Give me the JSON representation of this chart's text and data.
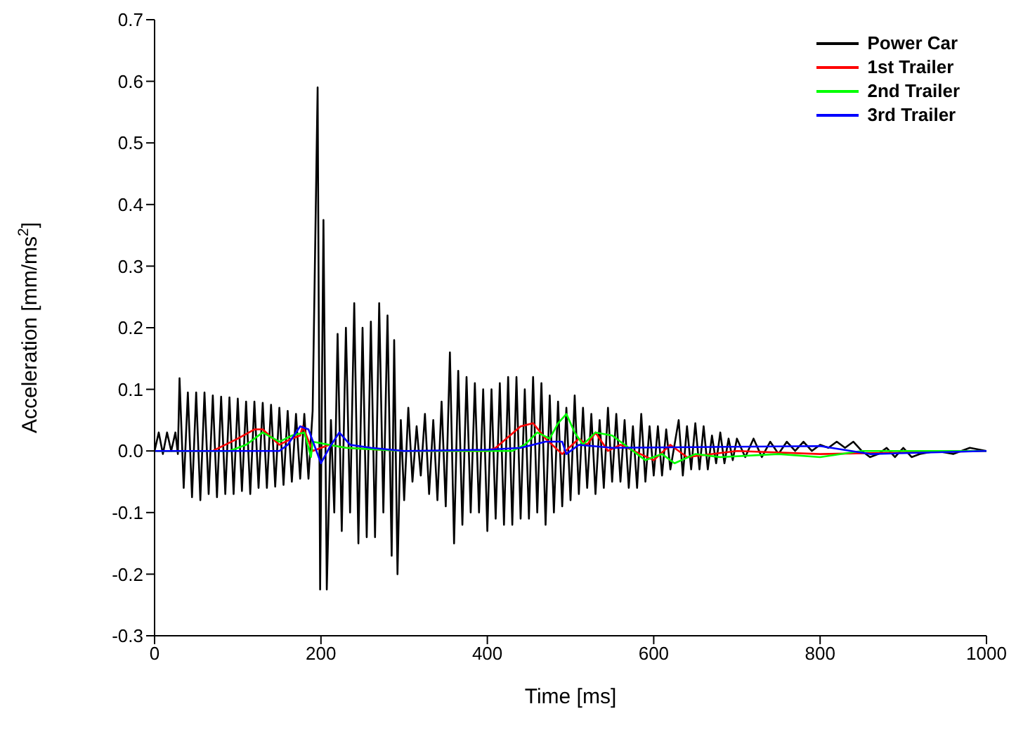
{
  "chart_data": {
    "type": "line",
    "xlabel": "Time [ms]",
    "ylabel": "Acceleration [mm/ms$^{2}$]",
    "xlim": [
      0,
      1000
    ],
    "xticks": [
      0,
      200,
      400,
      600,
      800,
      1000
    ],
    "ylim": [
      -0.3,
      0.7
    ],
    "yticks": [
      -0.3,
      -0.2,
      -0.1,
      {
        "value": 0,
        "label": "0.0"
      },
      0.1,
      0.2,
      0.3,
      0.4,
      0.5,
      0.6,
      0.7
    ],
    "grid": false,
    "legend": "top right",
    "marker": "none",
    "line_style": "solid",
    "series": [
      {
        "name": "Power Car",
        "color": "#000000",
        "x": [
          0,
          5,
          10,
          15,
          20,
          25,
          28,
          30,
          35,
          40,
          45,
          50,
          55,
          60,
          65,
          70,
          75,
          80,
          85,
          90,
          95,
          100,
          105,
          110,
          115,
          120,
          125,
          130,
          135,
          140,
          145,
          150,
          155,
          160,
          165,
          170,
          175,
          180,
          185,
          190,
          196,
          199,
          203,
          207,
          212,
          216,
          220,
          225,
          230,
          235,
          240,
          245,
          250,
          255,
          260,
          265,
          270,
          275,
          280,
          285,
          288,
          292,
          296,
          300,
          305,
          310,
          315,
          320,
          325,
          330,
          335,
          340,
          345,
          350,
          355,
          360,
          365,
          370,
          375,
          380,
          385,
          390,
          395,
          400,
          405,
          410,
          415,
          420,
          425,
          430,
          435,
          440,
          445,
          450,
          455,
          460,
          465,
          470,
          475,
          480,
          485,
          490,
          495,
          500,
          505,
          510,
          515,
          520,
          525,
          530,
          535,
          540,
          545,
          550,
          555,
          560,
          565,
          570,
          575,
          580,
          585,
          590,
          595,
          600,
          605,
          610,
          615,
          620,
          630,
          635,
          640,
          645,
          650,
          655,
          660,
          665,
          670,
          675,
          680,
          685,
          690,
          695,
          700,
          710,
          720,
          730,
          740,
          750,
          760,
          770,
          780,
          790,
          800,
          810,
          820,
          830,
          840,
          850,
          860,
          870,
          880,
          890,
          900,
          910,
          920,
          940,
          960,
          980,
          1000
        ],
        "values": [
          0,
          0.03,
          -0.005,
          0.03,
          0,
          0.03,
          -0.005,
          0.118,
          -0.06,
          0.095,
          -0.075,
          0.095,
          -0.08,
          0.095,
          -0.07,
          0.09,
          -0.075,
          0.088,
          -0.07,
          0.087,
          -0.07,
          0.085,
          -0.065,
          0.08,
          -0.07,
          0.08,
          -0.06,
          0.078,
          -0.06,
          0.075,
          -0.058,
          0.07,
          -0.055,
          0.065,
          -0.05,
          0.06,
          -0.045,
          0.06,
          -0.045,
          0.065,
          0.59,
          -0.225,
          0.375,
          -0.225,
          0.05,
          -0.1,
          0.19,
          -0.13,
          0.2,
          -0.1,
          0.24,
          -0.15,
          0.2,
          -0.14,
          0.21,
          -0.14,
          0.24,
          -0.1,
          0.22,
          -0.17,
          0.18,
          -0.2,
          0.05,
          -0.08,
          0.07,
          -0.05,
          0.04,
          -0.04,
          0.06,
          -0.07,
          0.05,
          -0.08,
          0.08,
          -0.09,
          0.16,
          -0.15,
          0.13,
          -0.12,
          0.12,
          -0.1,
          0.11,
          -0.1,
          0.1,
          -0.13,
          0.1,
          -0.11,
          0.11,
          -0.12,
          0.12,
          -0.12,
          0.12,
          -0.11,
          0.1,
          -0.11,
          0.12,
          -0.1,
          0.11,
          -0.12,
          0.09,
          -0.1,
          0.08,
          -0.09,
          0.07,
          -0.08,
          0.09,
          -0.07,
          0.07,
          -0.06,
          0.06,
          -0.07,
          0.05,
          -0.06,
          0.07,
          -0.05,
          0.06,
          -0.05,
          0.05,
          -0.06,
          0.04,
          -0.06,
          0.06,
          -0.05,
          0.04,
          -0.04,
          0.04,
          -0.04,
          0.035,
          -0.03,
          0.05,
          -0.04,
          0.04,
          -0.03,
          0.045,
          -0.03,
          0.04,
          -0.03,
          0.025,
          -0.02,
          0.03,
          -0.02,
          0.02,
          -0.015,
          0.02,
          -0.01,
          0.02,
          -0.01,
          0.015,
          -0.005,
          0.015,
          0,
          0.015,
          0,
          0.01,
          0.005,
          0.015,
          0.005,
          0.015,
          0,
          -0.01,
          -0.005,
          0.005,
          -0.01,
          0.005,
          -0.01,
          -0.005,
          0,
          -0.005,
          0.005,
          0
        ]
      },
      {
        "name": "1st Trailer",
        "color": "#ff0000",
        "x": [
          0,
          70,
          100,
          120,
          130,
          150,
          165,
          175,
          178,
          190,
          210,
          230,
          300,
          400,
          410,
          440,
          455,
          470,
          490,
          510,
          520,
          530,
          545,
          560,
          600,
          620,
          640,
          700,
          800,
          1000
        ],
        "values": [
          0,
          0,
          0.02,
          0.035,
          0.035,
          0.01,
          0.02,
          0.025,
          0.04,
          0,
          0.01,
          0.005,
          0,
          0,
          0.005,
          0.04,
          0.045,
          0.02,
          -0.005,
          0.02,
          0.01,
          0.03,
          0,
          0.01,
          -0.015,
          0.01,
          -0.01,
          0,
          -0.005,
          0
        ]
      },
      {
        "name": "2nd Trailer",
        "color": "#00ff00",
        "x": [
          0,
          90,
          110,
          130,
          150,
          165,
          180,
          188,
          190,
          210,
          230,
          300,
          430,
          445,
          460,
          475,
          485,
          495,
          505,
          515,
          530,
          550,
          570,
          590,
          610,
          625,
          650,
          680,
          750,
          800,
          850,
          1000
        ],
        "values": [
          0,
          0,
          0.01,
          0.03,
          0.015,
          0.025,
          0.03,
          -0.01,
          0.015,
          0.01,
          0.005,
          0,
          0,
          0.01,
          0.03,
          0.02,
          0.045,
          0.06,
          0.03,
          0.01,
          0.03,
          0.025,
          0.005,
          -0.015,
          -0.005,
          -0.02,
          -0.005,
          -0.01,
          -0.005,
          -0.01,
          0,
          0
        ]
      },
      {
        "name": "3rd Trailer",
        "color": "#0000ff",
        "x": [
          0,
          150,
          160,
          175,
          185,
          200,
          210,
          222,
          235,
          260,
          300,
          400,
          440,
          470,
          490,
          495,
          510,
          550,
          800,
          860,
          1000
        ],
        "values": [
          0,
          0,
          0.01,
          0.04,
          0.035,
          -0.02,
          0.005,
          0.03,
          0.01,
          0.005,
          0,
          0.002,
          0.005,
          0.015,
          0.015,
          -0.005,
          0.01,
          0.005,
          0.008,
          -0.005,
          0
        ]
      }
    ]
  }
}
